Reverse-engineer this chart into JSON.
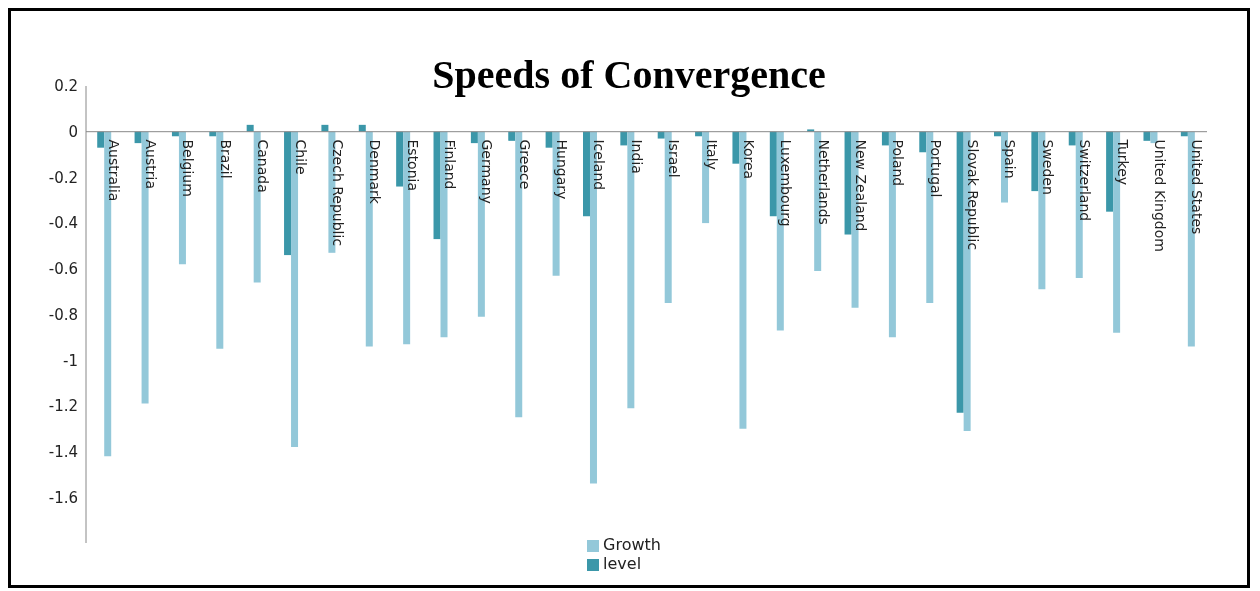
{
  "chart_data": {
    "type": "bar",
    "title": "Speeds of Convergence",
    "categories": [
      "Australia",
      "Austria",
      "Belgium",
      "Brazil",
      "Canada",
      "Chile",
      "Czech Republic",
      "Denmark",
      "Estonia",
      "Finland",
      "Germany",
      "Greece",
      "Hungary",
      "Iceland",
      "India",
      "Israel",
      "Italy",
      "Korea",
      "Luxembourg",
      "Netherlands",
      "New Zealand",
      "Poland",
      "Portugal",
      "Slovak Republic",
      "Spain",
      "Sweden",
      "Switzerland",
      "Turkey",
      "United Kingdom",
      "United States"
    ],
    "series": [
      {
        "name": "level",
        "color": "#3b97a9",
        "values": [
          -0.07,
          -0.05,
          -0.02,
          -0.02,
          0.03,
          -0.54,
          0.03,
          0.03,
          -0.24,
          -0.47,
          -0.05,
          -0.04,
          -0.07,
          -0.37,
          -0.06,
          -0.03,
          -0.02,
          -0.14,
          -0.37,
          0.01,
          -0.45,
          -0.06,
          -0.09,
          -1.23,
          -0.02,
          -0.26,
          -0.06,
          -0.35,
          -0.04,
          -0.02
        ]
      },
      {
        "name": "Growth",
        "color": "#93c8d9",
        "values": [
          -1.42,
          -1.19,
          -0.58,
          -0.95,
          -0.66,
          -1.38,
          -0.53,
          -0.94,
          -0.93,
          -0.9,
          -0.81,
          -1.25,
          -0.63,
          -1.54,
          -1.21,
          -0.75,
          -0.4,
          -1.3,
          -0.87,
          -0.61,
          -0.77,
          -0.9,
          -0.75,
          -1.31,
          -0.31,
          -0.69,
          -0.64,
          -0.88,
          -0.05,
          -0.94
        ]
      }
    ],
    "ylim": [
      -1.8,
      0.2
    ],
    "yticks": [
      0.2,
      0,
      -0.2,
      -0.4,
      -0.6,
      -0.8,
      -1,
      -1.2,
      -1.4,
      -1.6
    ],
    "grid": false,
    "legend": "bottom"
  }
}
